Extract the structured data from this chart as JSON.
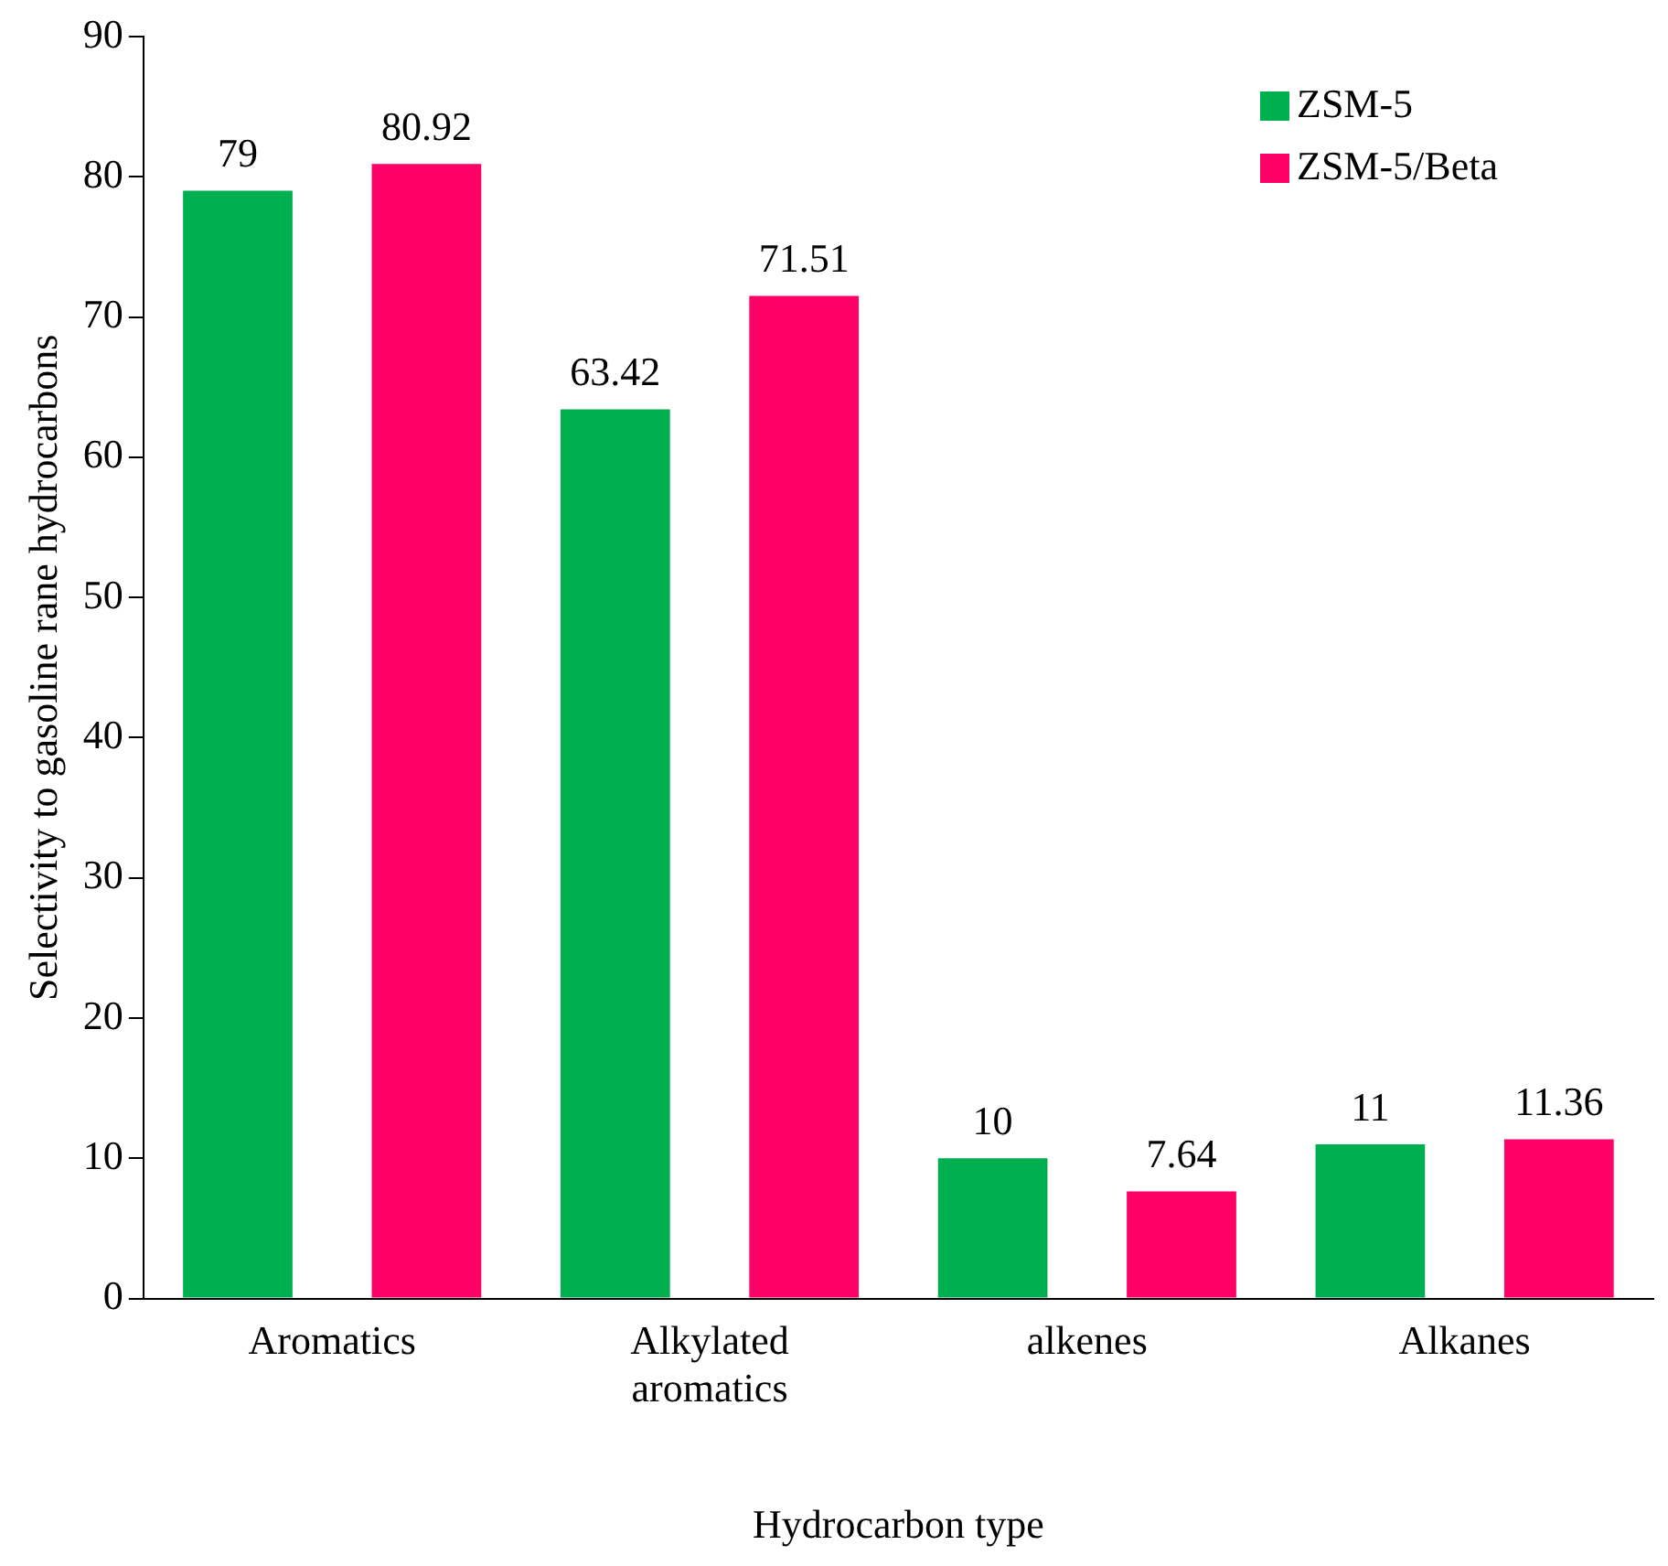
{
  "chart_data": {
    "type": "bar",
    "xlabel": "Hydrocarbon type",
    "ylabel": "Selectivity to gasoline rane hydrocarbons",
    "categories": [
      "Aromatics",
      "Alkylated aromatics",
      "alkenes",
      "Alkanes"
    ],
    "series": [
      {
        "name": "ZSM-5",
        "color": "#00b050",
        "values": [
          79,
          63.42,
          10,
          11
        ]
      },
      {
        "name": "ZSM-5/Beta",
        "color": "#ff0066",
        "values": [
          80.92,
          71.51,
          7.64,
          11.36
        ]
      }
    ],
    "ylim": [
      0,
      90
    ],
    "yticks": [
      0,
      10,
      20,
      30,
      40,
      50,
      60,
      70,
      80,
      90
    ],
    "grid": false,
    "legend": "top right",
    "data_labels": true
  }
}
